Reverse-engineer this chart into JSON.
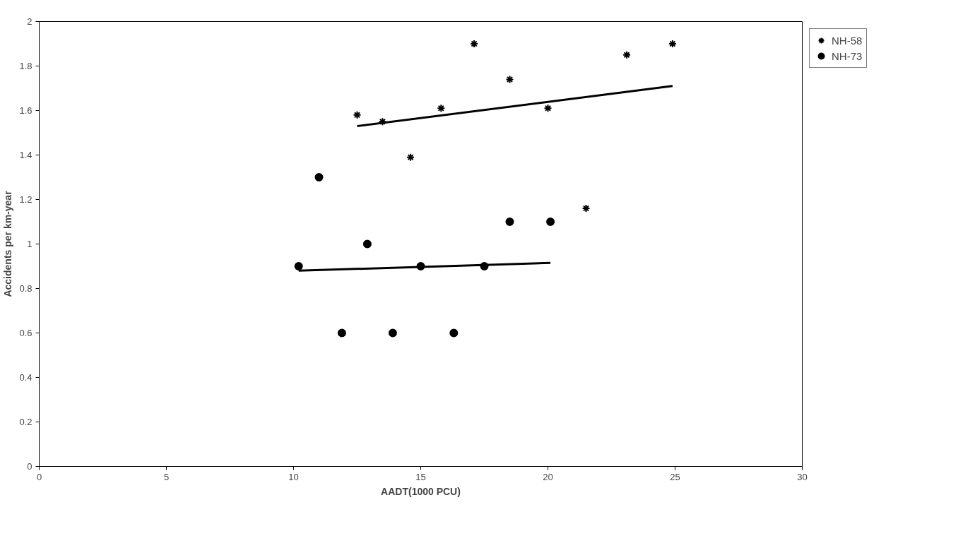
{
  "chart_data": {
    "type": "scatter",
    "xlabel": "AADT(1000 PCU)",
    "ylabel": "Accidents per km-year",
    "xlim": [
      0,
      30
    ],
    "xticks": [
      0,
      5,
      10,
      15,
      20,
      25,
      30
    ],
    "ylim": [
      0,
      2
    ],
    "yticks": [
      0,
      {
        "value": 0.2,
        "label": "0.2"
      },
      {
        "value": 0.4,
        "label": "0.4"
      },
      {
        "value": 0.6,
        "label": "0.6"
      },
      {
        "value": 0.8,
        "label": "0.8"
      },
      1,
      {
        "value": 1.2,
        "label": "1.2"
      },
      {
        "value": 1.4,
        "label": "1.4"
      },
      {
        "value": 1.6,
        "label": "1.6"
      },
      {
        "value": 1.8,
        "label": "1.8"
      },
      2
    ],
    "grid": false,
    "legend": "right",
    "series": [
      {
        "name": "NH-58",
        "color": "#000000",
        "marker": "cross",
        "x": [
          12.5,
          13.5,
          14.6,
          15.8,
          17.1,
          18.5,
          20.0,
          21.5,
          23.1,
          24.9
        ],
        "values": [
          1.58,
          1.55,
          1.39,
          1.61,
          1.9,
          1.74,
          1.61,
          1.16,
          1.85,
          1.9
        ]
      },
      {
        "name": "NH-73",
        "color": "#000000",
        "marker": "circle",
        "x": [
          10.2,
          11.0,
          11.9,
          12.9,
          13.9,
          15.0,
          16.3,
          17.5,
          18.5,
          20.1
        ],
        "values": [
          0.9,
          1.3,
          0.6,
          1.0,
          0.6,
          0.9,
          0.6,
          0.9,
          1.1,
          1.1
        ]
      },
      {
        "type": "line",
        "color": "#000000",
        "line_style": "solid",
        "x": [
          12.5,
          24.9
        ],
        "values": [
          1.53,
          1.71
        ]
      },
      {
        "type": "line",
        "color": "#000000",
        "line_style": "solid",
        "x": [
          10.2,
          20.1
        ],
        "values": [
          0.88,
          0.915
        ]
      }
    ]
  }
}
